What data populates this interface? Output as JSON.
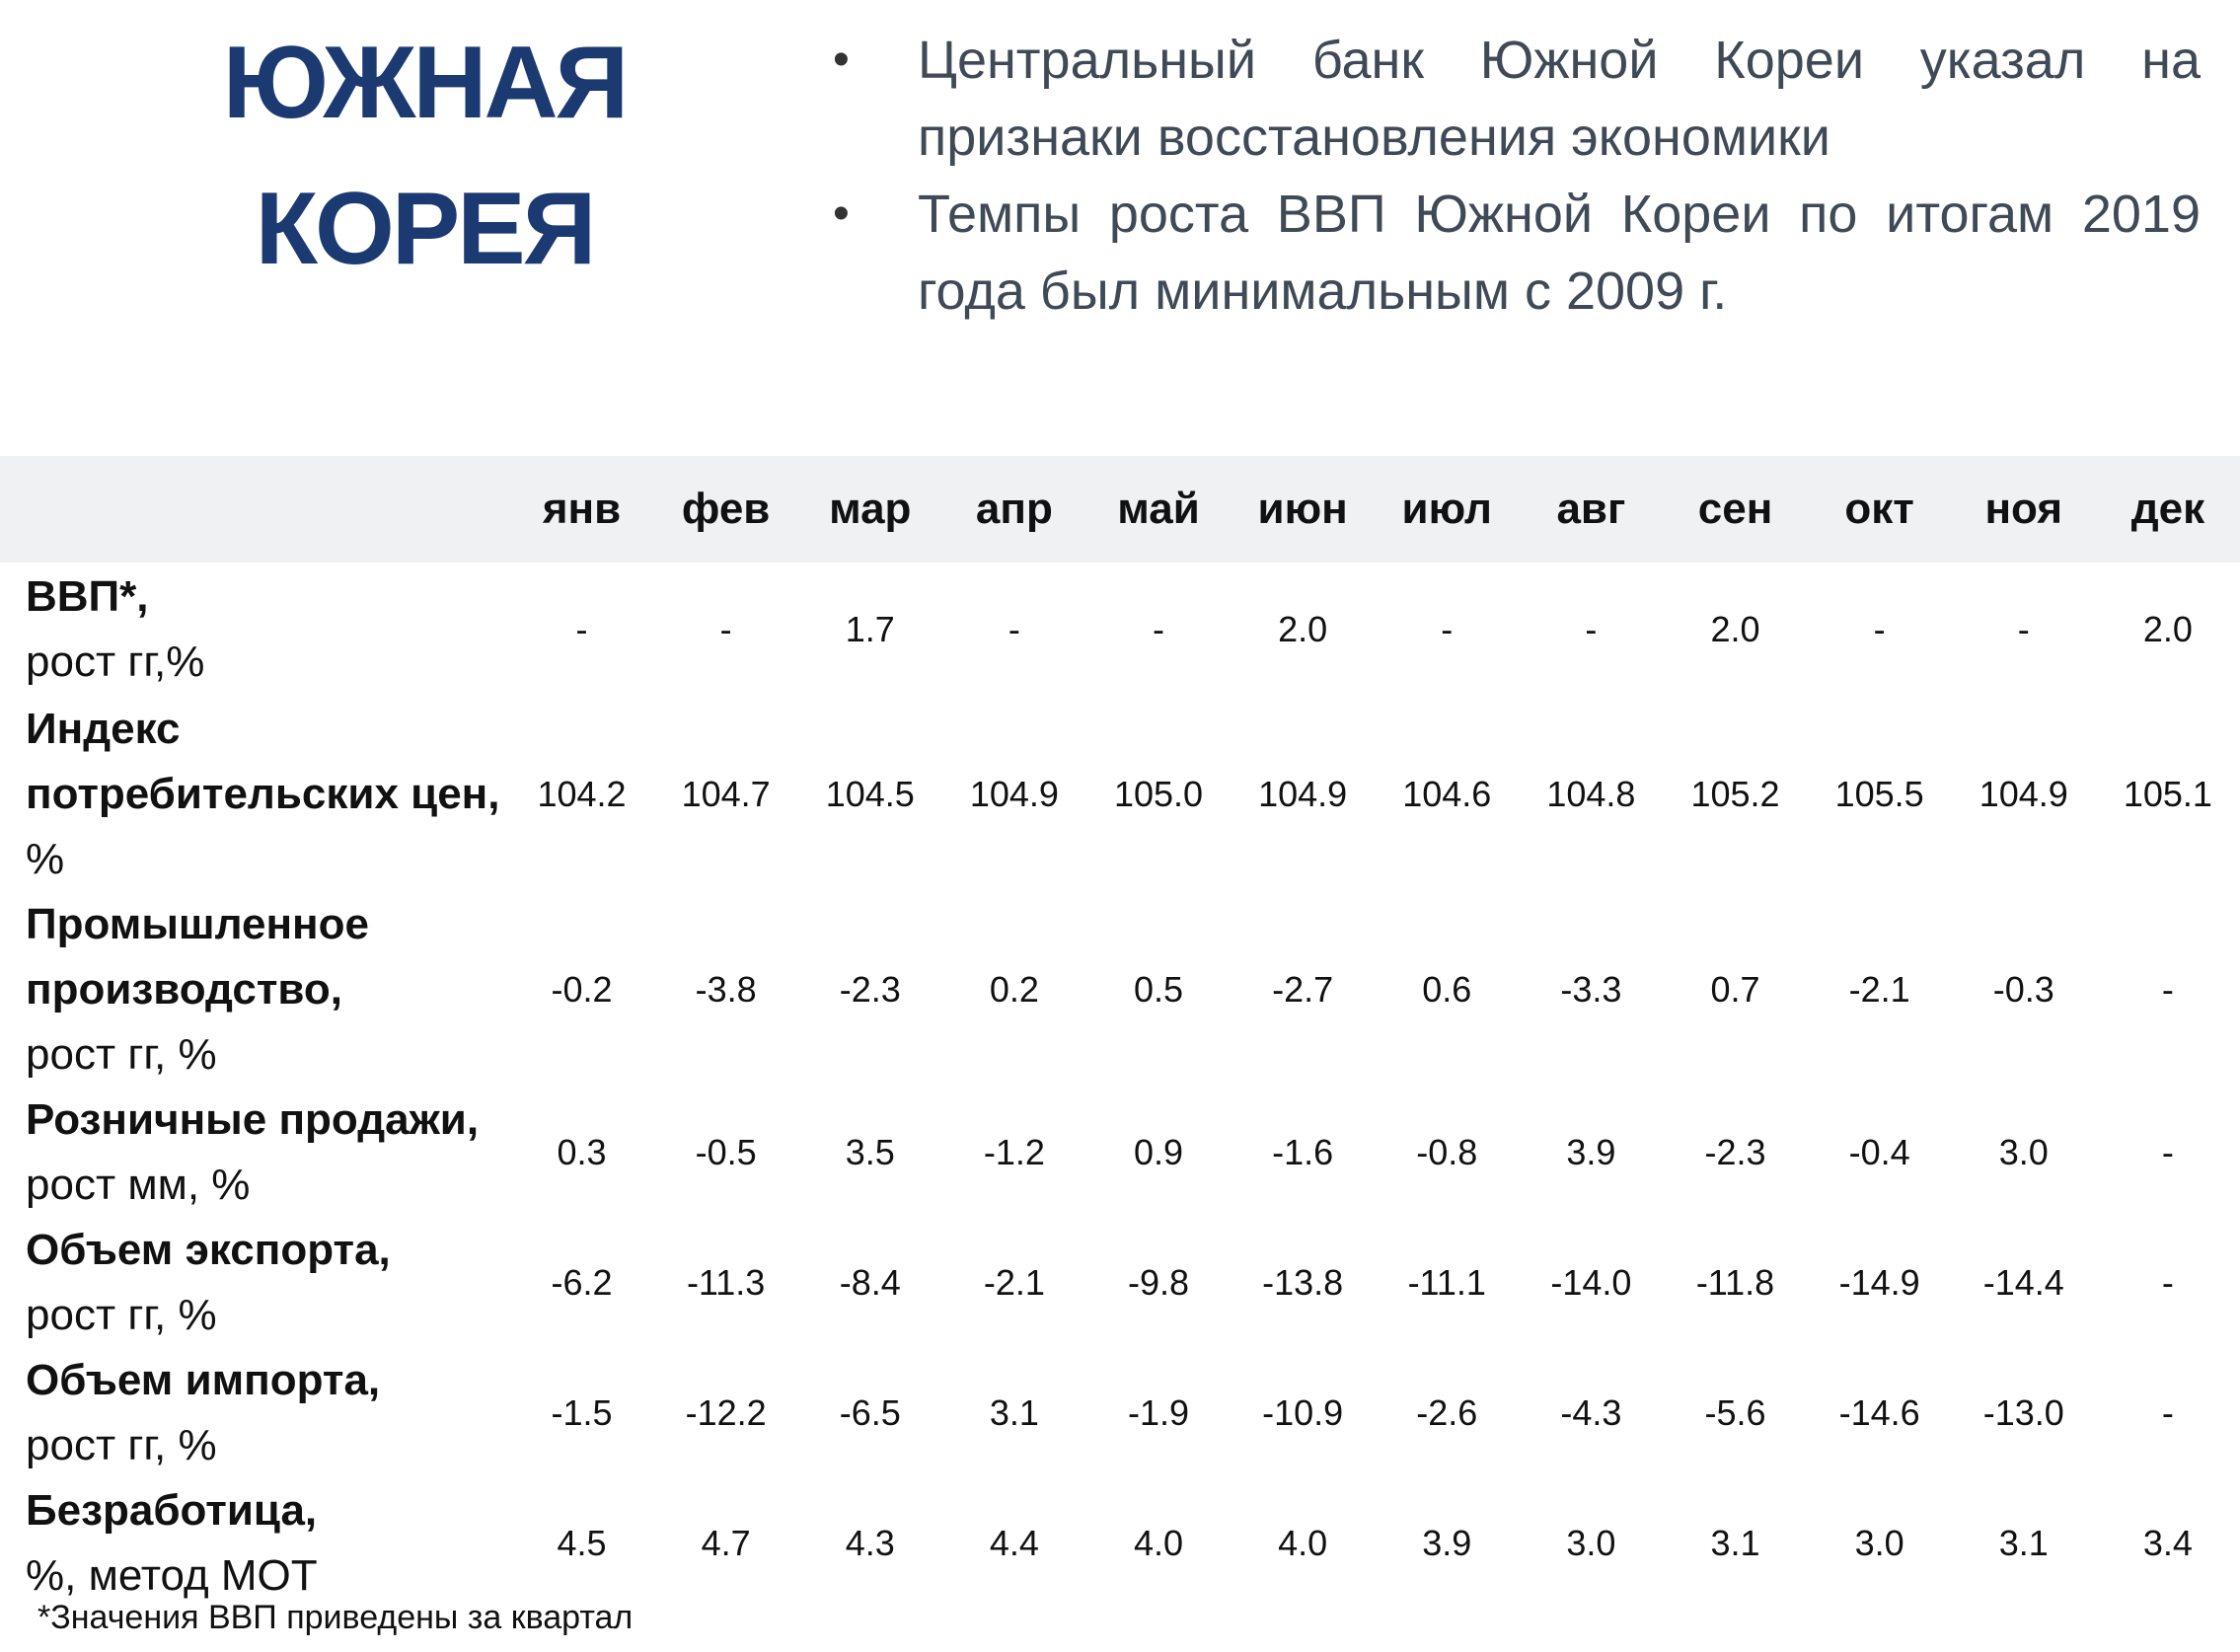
{
  "title": {
    "line1": "ЮЖНАЯ",
    "line2": "КОРЕЯ"
  },
  "bullets": [
    "Центральный банк Южной Кореи указал на признаки восстановления экономики",
    "Темпы роста ВВП Южной Кореи по итогам 2019 года был минимальным с 2009 г."
  ],
  "table": {
    "months": [
      "янв",
      "фев",
      "мар",
      "апр",
      "май",
      "июн",
      "июл",
      "авг",
      "сен",
      "окт",
      "ноя",
      "дек"
    ],
    "rows": [
      {
        "label_main": "ВВП*,",
        "label_sub": "рост гг,%",
        "values": [
          "-",
          "-",
          "1.7",
          "-",
          "-",
          "2.0",
          "-",
          "-",
          "2.0",
          "-",
          "-",
          "2.0"
        ]
      },
      {
        "label_main": "Индекс потребительских цен,",
        "label_sub": "%",
        "values": [
          "104.2",
          "104.7",
          "104.5",
          "104.9",
          "105.0",
          "104.9",
          "104.6",
          "104.8",
          "105.2",
          "105.5",
          "104.9",
          "105.1"
        ]
      },
      {
        "label_main": "Промышленное производство,",
        "label_sub": "рост гг, %",
        "values": [
          "-0.2",
          "-3.8",
          "-2.3",
          "0.2",
          "0.5",
          "-2.7",
          "0.6",
          "-3.3",
          "0.7",
          "-2.1",
          "-0.3",
          "-"
        ]
      },
      {
        "label_main": "Розничные продажи,",
        "label_sub": "рост мм, %",
        "values": [
          "0.3",
          "-0.5",
          "3.5",
          "-1.2",
          "0.9",
          "-1.6",
          "-0.8",
          "3.9",
          "-2.3",
          "-0.4",
          "3.0",
          "-"
        ]
      },
      {
        "label_main": "Объем экспорта,",
        "label_sub": "рост гг, %",
        "values": [
          "-6.2",
          "-11.3",
          "-8.4",
          "-2.1",
          "-9.8",
          "-13.8",
          "-11.1",
          "-14.0",
          "-11.8",
          "-14.9",
          "-14.4",
          "-"
        ]
      },
      {
        "label_main": "Объем импорта,",
        "label_sub": "рост гг, %",
        "values": [
          "-1.5",
          "-12.2",
          "-6.5",
          "3.1",
          "-1.9",
          "-10.9",
          "-2.6",
          "-4.3",
          "-5.6",
          "-14.6",
          "-13.0",
          "-"
        ]
      },
      {
        "label_main": "Безработица,",
        "label_sub": "%, метод МОТ",
        "values": [
          "4.5",
          "4.7",
          "4.3",
          "4.4",
          "4.0",
          "4.0",
          "3.9",
          "3.0",
          "3.1",
          "3.0",
          "3.1",
          "3.4"
        ]
      }
    ]
  },
  "footnote": "*Значения ВВП приведены за квартал",
  "colors": {
    "title": "#1c3a72",
    "header_bg": "#eff1f2",
    "bullet_text": "#3f4a56"
  }
}
